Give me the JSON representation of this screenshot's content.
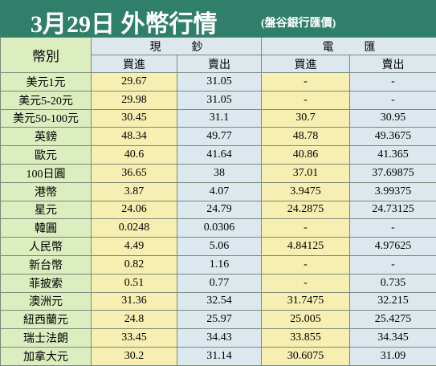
{
  "header": {
    "title": "3月29日 外幣行情",
    "source": "(盤谷銀行匯價)"
  },
  "table": {
    "currency_header": "幣別",
    "cash_group": "現鈔",
    "tt_group": "電匯",
    "buy_label": "買進",
    "sell_label": "賣出",
    "rows": [
      {
        "currency": "美元1元",
        "cash_buy": "29.67",
        "cash_sell": "31.05",
        "tt_buy": "-",
        "tt_sell": "-"
      },
      {
        "currency": "美元5-20元",
        "cash_buy": "29.98",
        "cash_sell": "31.05",
        "tt_buy": "-",
        "tt_sell": "-"
      },
      {
        "currency": "美元50-100元",
        "cash_buy": "30.45",
        "cash_sell": "31.1",
        "tt_buy": "30.7",
        "tt_sell": "30.95"
      },
      {
        "currency": "英鎊",
        "cash_buy": "48.34",
        "cash_sell": "49.77",
        "tt_buy": "48.78",
        "tt_sell": "49.3675"
      },
      {
        "currency": "歐元",
        "cash_buy": "40.6",
        "cash_sell": "41.64",
        "tt_buy": "40.86",
        "tt_sell": "41.365"
      },
      {
        "currency": "100日圓",
        "cash_buy": "36.65",
        "cash_sell": "38",
        "tt_buy": "37.01",
        "tt_sell": "37.69875"
      },
      {
        "currency": "港幣",
        "cash_buy": "3.87",
        "cash_sell": "4.07",
        "tt_buy": "3.9475",
        "tt_sell": "3.99375"
      },
      {
        "currency": "星元",
        "cash_buy": "24.06",
        "cash_sell": "24.79",
        "tt_buy": "24.2875",
        "tt_sell": "24.73125"
      },
      {
        "currency": "韓圓",
        "cash_buy": "0.0248",
        "cash_sell": "0.0306",
        "tt_buy": "-",
        "tt_sell": "-"
      },
      {
        "currency": "人民幣",
        "cash_buy": "4.49",
        "cash_sell": "5.06",
        "tt_buy": "4.84125",
        "tt_sell": "4.97625"
      },
      {
        "currency": "新台幣",
        "cash_buy": "0.82",
        "cash_sell": "1.16",
        "tt_buy": "-",
        "tt_sell": "-"
      },
      {
        "currency": "菲披索",
        "cash_buy": "0.51",
        "cash_sell": "0.77",
        "tt_buy": "-",
        "tt_sell": "0.735"
      },
      {
        "currency": "澳洲元",
        "cash_buy": "31.36",
        "cash_sell": "32.54",
        "tt_buy": "31.7475",
        "tt_sell": "32.215"
      },
      {
        "currency": "紐西蘭元",
        "cash_buy": "24.8",
        "cash_sell": "25.97",
        "tt_buy": "25.005",
        "tt_sell": "25.4275"
      },
      {
        "currency": "瑞士法朗",
        "cash_buy": "33.45",
        "cash_sell": "34.43",
        "tt_buy": "33.855",
        "tt_sell": "34.345"
      },
      {
        "currency": "加拿大元",
        "cash_buy": "30.2",
        "cash_sell": "31.14",
        "tt_buy": "30.6075",
        "tt_sell": "31.09"
      }
    ]
  }
}
